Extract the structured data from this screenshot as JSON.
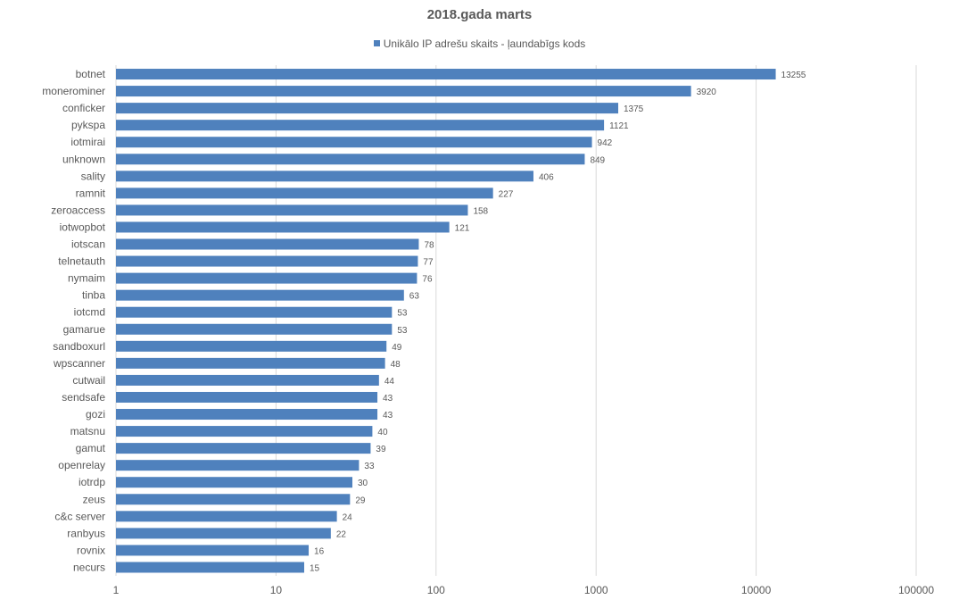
{
  "chart_data": {
    "type": "bar",
    "orientation": "horizontal",
    "title": "2018.gada marts",
    "legend_position": "top",
    "x_scale": "log",
    "xlim": [
      1,
      100000
    ],
    "x_ticks": [
      "1",
      "10",
      "100",
      "1000",
      "10000",
      "100000"
    ],
    "grid": true,
    "bar_color": "#4F81BD",
    "series": [
      {
        "name": "Unikālo IP adrešu skaits -  ļaundabīgs kods",
        "categories": [
          "botnet",
          "monerominer",
          "conficker",
          "pykspa",
          "iotmirai",
          "unknown",
          "sality",
          "ramnit",
          "zeroaccess",
          "iotwopbot",
          "iotscan",
          "telnetauth",
          "nymaim",
          "tinba",
          "iotcmd",
          "gamarue",
          "sandboxurl",
          "wpscanner",
          "cutwail",
          "sendsafe",
          "gozi",
          "matsnu",
          "gamut",
          "openrelay",
          "iotrdp",
          "zeus",
          "c&c server",
          "ranbyus",
          "rovnix",
          "necurs"
        ],
        "values": [
          13255,
          3920,
          1375,
          1121,
          942,
          849,
          406,
          227,
          158,
          121,
          78,
          77,
          76,
          63,
          53,
          53,
          49,
          48,
          44,
          43,
          43,
          40,
          39,
          33,
          30,
          29,
          24,
          22,
          16,
          15
        ]
      }
    ]
  }
}
